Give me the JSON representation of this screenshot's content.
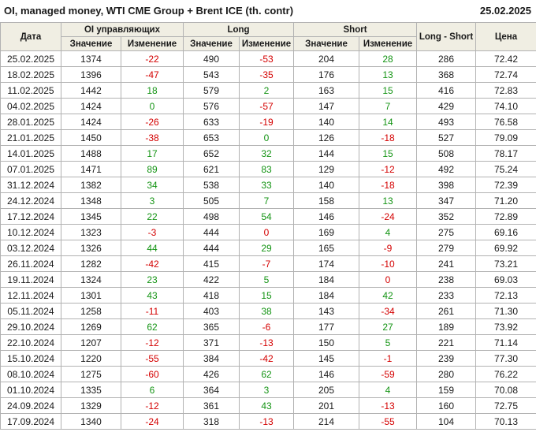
{
  "title": "OI, managed money, WTI CME Group + Brent ICE (th. contr)",
  "report_date": "25.02.2025",
  "headers": {
    "date": "Дата",
    "oi_group": "OI управляющих",
    "long_group": "Long",
    "short_group": "Short",
    "value": "Значение",
    "change": "Изменение",
    "long_short": "Long - Short",
    "price": "Цена"
  },
  "colors": {
    "positive": "#149414",
    "negative": "#d40000",
    "header_bg": "#f0eee3",
    "border": "#b2b2b2"
  },
  "chart_data": {
    "type": "table",
    "columns": [
      "Дата",
      "OI управляющих Значение",
      "OI управляющих Изменение",
      "Long Значение",
      "Long Изменение",
      "Short Значение",
      "Short Изменение",
      "Long - Short",
      "Цена"
    ],
    "rows": [
      {
        "date": "25.02.2025",
        "oi": "1374",
        "oi_chg": "-22",
        "oi_chg_color": "red",
        "long": "490",
        "long_chg": "-53",
        "long_chg_color": "red",
        "short": "204",
        "short_chg": "28",
        "short_chg_color": "green",
        "ls": "286",
        "price": "72.42"
      },
      {
        "date": "18.02.2025",
        "oi": "1396",
        "oi_chg": "-47",
        "oi_chg_color": "red",
        "long": "543",
        "long_chg": "-35",
        "long_chg_color": "red",
        "short": "176",
        "short_chg": "13",
        "short_chg_color": "green",
        "ls": "368",
        "price": "72.74"
      },
      {
        "date": "11.02.2025",
        "oi": "1442",
        "oi_chg": "18",
        "oi_chg_color": "green",
        "long": "579",
        "long_chg": "2",
        "long_chg_color": "green",
        "short": "163",
        "short_chg": "15",
        "short_chg_color": "green",
        "ls": "416",
        "price": "72.83"
      },
      {
        "date": "04.02.2025",
        "oi": "1424",
        "oi_chg": "0",
        "oi_chg_color": "green",
        "long": "576",
        "long_chg": "-57",
        "long_chg_color": "red",
        "short": "147",
        "short_chg": "7",
        "short_chg_color": "green",
        "ls": "429",
        "price": "74.10"
      },
      {
        "date": "28.01.2025",
        "oi": "1424",
        "oi_chg": "-26",
        "oi_chg_color": "red",
        "long": "633",
        "long_chg": "-19",
        "long_chg_color": "red",
        "short": "140",
        "short_chg": "14",
        "short_chg_color": "green",
        "ls": "493",
        "price": "76.58"
      },
      {
        "date": "21.01.2025",
        "oi": "1450",
        "oi_chg": "-38",
        "oi_chg_color": "red",
        "long": "653",
        "long_chg": "0",
        "long_chg_color": "green",
        "short": "126",
        "short_chg": "-18",
        "short_chg_color": "red",
        "ls": "527",
        "price": "79.09"
      },
      {
        "date": "14.01.2025",
        "oi": "1488",
        "oi_chg": "17",
        "oi_chg_color": "green",
        "long": "652",
        "long_chg": "32",
        "long_chg_color": "green",
        "short": "144",
        "short_chg": "15",
        "short_chg_color": "green",
        "ls": "508",
        "price": "78.17"
      },
      {
        "date": "07.01.2025",
        "oi": "1471",
        "oi_chg": "89",
        "oi_chg_color": "green",
        "long": "621",
        "long_chg": "83",
        "long_chg_color": "green",
        "short": "129",
        "short_chg": "-12",
        "short_chg_color": "red",
        "ls": "492",
        "price": "75.24"
      },
      {
        "date": "31.12.2024",
        "oi": "1382",
        "oi_chg": "34",
        "oi_chg_color": "green",
        "long": "538",
        "long_chg": "33",
        "long_chg_color": "green",
        "short": "140",
        "short_chg": "-18",
        "short_chg_color": "red",
        "ls": "398",
        "price": "72.39"
      },
      {
        "date": "24.12.2024",
        "oi": "1348",
        "oi_chg": "3",
        "oi_chg_color": "green",
        "long": "505",
        "long_chg": "7",
        "long_chg_color": "green",
        "short": "158",
        "short_chg": "13",
        "short_chg_color": "green",
        "ls": "347",
        "price": "71.20"
      },
      {
        "date": "17.12.2024",
        "oi": "1345",
        "oi_chg": "22",
        "oi_chg_color": "green",
        "long": "498",
        "long_chg": "54",
        "long_chg_color": "green",
        "short": "146",
        "short_chg": "-24",
        "short_chg_color": "red",
        "ls": "352",
        "price": "72.89"
      },
      {
        "date": "10.12.2024",
        "oi": "1323",
        "oi_chg": "-3",
        "oi_chg_color": "red",
        "long": "444",
        "long_chg": "0",
        "long_chg_color": "red",
        "short": "169",
        "short_chg": "4",
        "short_chg_color": "green",
        "ls": "275",
        "price": "69.16"
      },
      {
        "date": "03.12.2024",
        "oi": "1326",
        "oi_chg": "44",
        "oi_chg_color": "green",
        "long": "444",
        "long_chg": "29",
        "long_chg_color": "green",
        "short": "165",
        "short_chg": "-9",
        "short_chg_color": "red",
        "ls": "279",
        "price": "69.92"
      },
      {
        "date": "26.11.2024",
        "oi": "1282",
        "oi_chg": "-42",
        "oi_chg_color": "red",
        "long": "415",
        "long_chg": "-7",
        "long_chg_color": "red",
        "short": "174",
        "short_chg": "-10",
        "short_chg_color": "red",
        "ls": "241",
        "price": "73.21"
      },
      {
        "date": "19.11.2024",
        "oi": "1324",
        "oi_chg": "23",
        "oi_chg_color": "green",
        "long": "422",
        "long_chg": "5",
        "long_chg_color": "green",
        "short": "184",
        "short_chg": "0",
        "short_chg_color": "red",
        "ls": "238",
        "price": "69.03"
      },
      {
        "date": "12.11.2024",
        "oi": "1301",
        "oi_chg": "43",
        "oi_chg_color": "green",
        "long": "418",
        "long_chg": "15",
        "long_chg_color": "green",
        "short": "184",
        "short_chg": "42",
        "short_chg_color": "green",
        "ls": "233",
        "price": "72.13"
      },
      {
        "date": "05.11.2024",
        "oi": "1258",
        "oi_chg": "-11",
        "oi_chg_color": "red",
        "long": "403",
        "long_chg": "38",
        "long_chg_color": "green",
        "short": "143",
        "short_chg": "-34",
        "short_chg_color": "red",
        "ls": "261",
        "price": "71.30"
      },
      {
        "date": "29.10.2024",
        "oi": "1269",
        "oi_chg": "62",
        "oi_chg_color": "green",
        "long": "365",
        "long_chg": "-6",
        "long_chg_color": "red",
        "short": "177",
        "short_chg": "27",
        "short_chg_color": "green",
        "ls": "189",
        "price": "73.92"
      },
      {
        "date": "22.10.2024",
        "oi": "1207",
        "oi_chg": "-12",
        "oi_chg_color": "red",
        "long": "371",
        "long_chg": "-13",
        "long_chg_color": "red",
        "short": "150",
        "short_chg": "5",
        "short_chg_color": "green",
        "ls": "221",
        "price": "71.14"
      },
      {
        "date": "15.10.2024",
        "oi": "1220",
        "oi_chg": "-55",
        "oi_chg_color": "red",
        "long": "384",
        "long_chg": "-42",
        "long_chg_color": "red",
        "short": "145",
        "short_chg": "-1",
        "short_chg_color": "red",
        "ls": "239",
        "price": "77.30"
      },
      {
        "date": "08.10.2024",
        "oi": "1275",
        "oi_chg": "-60",
        "oi_chg_color": "red",
        "long": "426",
        "long_chg": "62",
        "long_chg_color": "green",
        "short": "146",
        "short_chg": "-59",
        "short_chg_color": "red",
        "ls": "280",
        "price": "76.22"
      },
      {
        "date": "01.10.2024",
        "oi": "1335",
        "oi_chg": "6",
        "oi_chg_color": "green",
        "long": "364",
        "long_chg": "3",
        "long_chg_color": "green",
        "short": "205",
        "short_chg": "4",
        "short_chg_color": "green",
        "ls": "159",
        "price": "70.08"
      },
      {
        "date": "24.09.2024",
        "oi": "1329",
        "oi_chg": "-12",
        "oi_chg_color": "red",
        "long": "361",
        "long_chg": "43",
        "long_chg_color": "green",
        "short": "201",
        "short_chg": "-13",
        "short_chg_color": "red",
        "ls": "160",
        "price": "72.75"
      },
      {
        "date": "17.09.2024",
        "oi": "1340",
        "oi_chg": "-24",
        "oi_chg_color": "red",
        "long": "318",
        "long_chg": "-13",
        "long_chg_color": "red",
        "short": "214",
        "short_chg": "-55",
        "short_chg_color": "red",
        "ls": "104",
        "price": "70.13"
      }
    ]
  }
}
